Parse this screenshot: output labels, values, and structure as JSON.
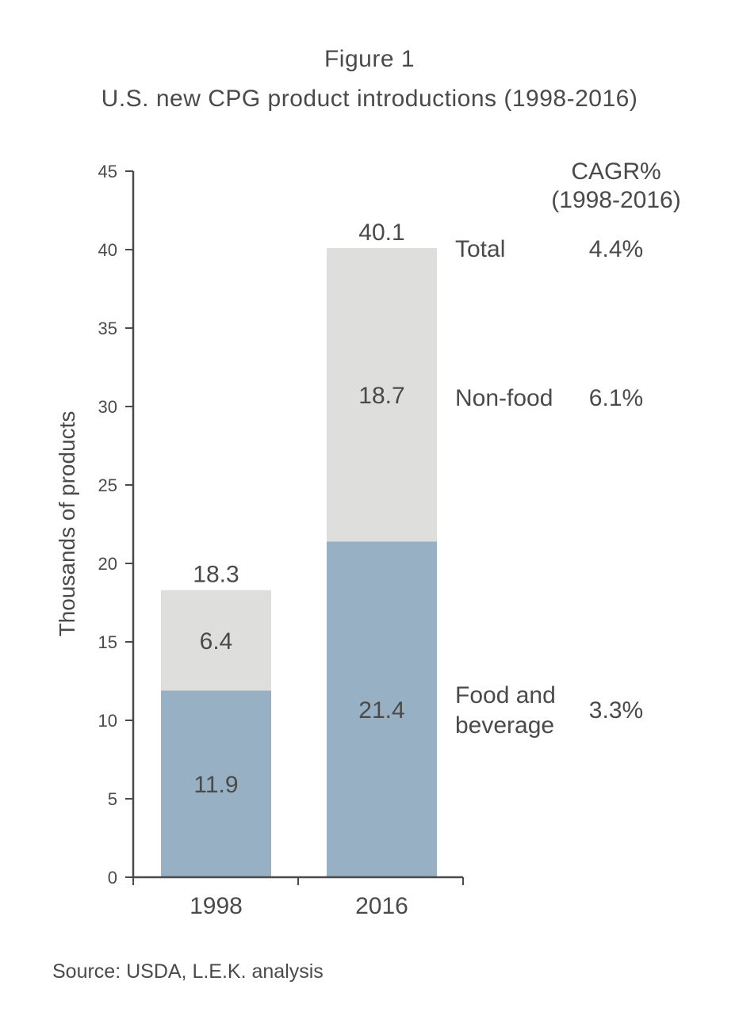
{
  "figure_label": "Figure 1",
  "source": "Source: USDA, L.E.K. analysis",
  "chart_data": {
    "type": "bar",
    "stacked": true,
    "title": "U.S. new CPG product introductions (1998-2016)",
    "xlabel": "",
    "ylabel": "Thousands of products",
    "ylim": [
      0,
      45
    ],
    "yticks": [
      0,
      5,
      10,
      15,
      20,
      25,
      30,
      35,
      40,
      45
    ],
    "categories": [
      "1998",
      "2016"
    ],
    "series": [
      {
        "name": "Food and beverage",
        "values": [
          11.9,
          21.4
        ],
        "color": "#97b0c3",
        "labels": [
          "11.9",
          "21.4"
        ]
      },
      {
        "name": "Non-food",
        "values": [
          6.4,
          18.7
        ],
        "color": "#dededd",
        "labels": [
          "6.4",
          "18.7"
        ]
      }
    ],
    "totals": {
      "values": [
        18.3,
        40.1
      ],
      "labels": [
        "18.3",
        "40.1"
      ]
    },
    "cagr": {
      "header": [
        "CAGR%",
        "(1998-2016)"
      ],
      "rows": [
        {
          "label": "Total",
          "value": "4.4%",
          "y": 40.1
        },
        {
          "label": "Non-food",
          "value": "6.1%",
          "y": 30.6
        },
        {
          "label": [
            "Food and",
            "beverage"
          ],
          "value": "3.3%",
          "y": 10.7
        }
      ]
    },
    "grid": false
  }
}
